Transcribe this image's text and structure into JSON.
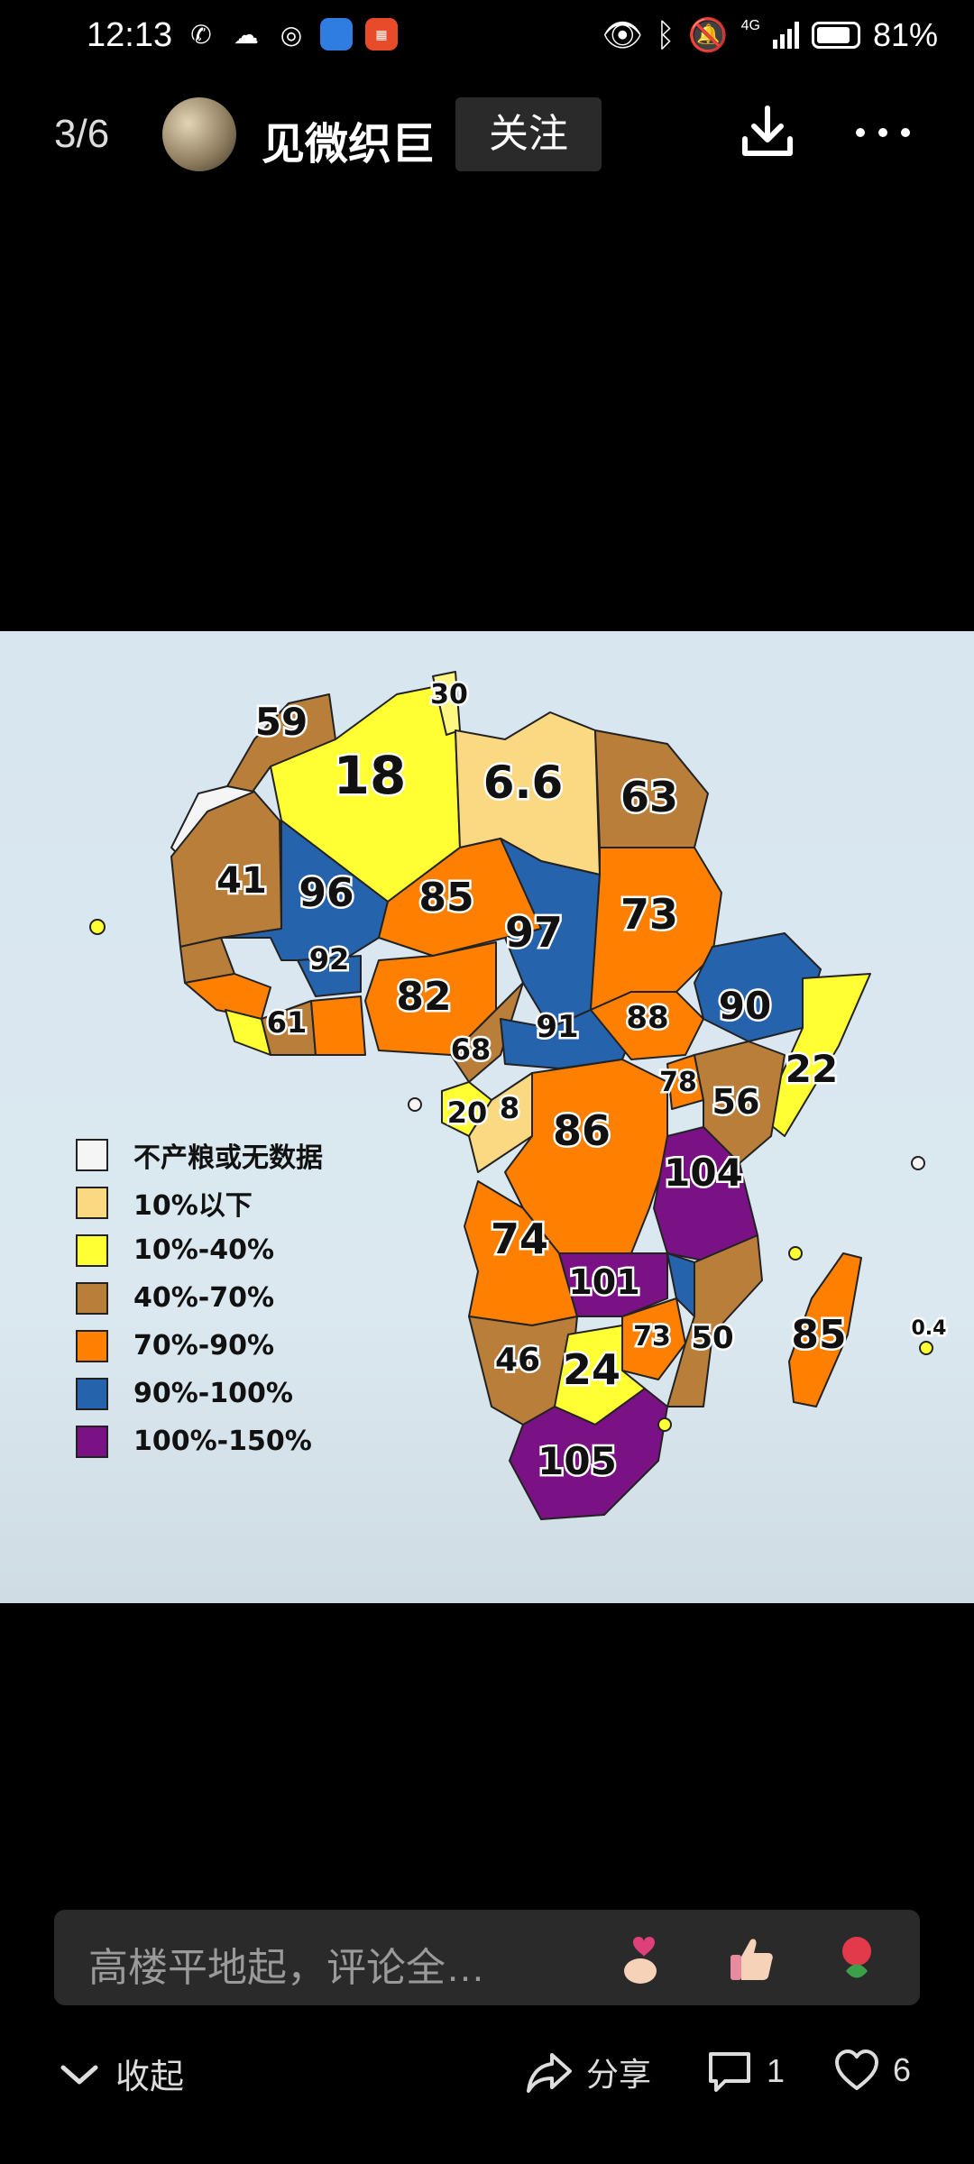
{
  "status": {
    "time": "12:13",
    "network": "4G",
    "battery": "81%",
    "icons": [
      "missed-call-icon",
      "wechat-icon",
      "browser-icon",
      "app-icon",
      "app-icon",
      "eye-icon",
      "bluetooth-icon",
      "mute-icon",
      "signal-icon",
      "battery-icon"
    ]
  },
  "header": {
    "counter": "3/6",
    "author": "见微织巨",
    "follow_label": "关注"
  },
  "map": {
    "legend": [
      {
        "label": "不产粮或无数据",
        "color": "#f5f5f5"
      },
      {
        "label": "10%以下",
        "color": "#fbd982"
      },
      {
        "label": "10%-40%",
        "color": "#ffff33"
      },
      {
        "label": "40%-70%",
        "color": "#b97f3a"
      },
      {
        "label": "70%-90%",
        "color": "#ff8000"
      },
      {
        "label": "90%-100%",
        "color": "#2563ad"
      },
      {
        "label": "100%-150%",
        "color": "#7a1285"
      }
    ],
    "labels": [
      "30",
      "59",
      "18",
      "6.6",
      "63",
      "41",
      "96",
      "85",
      "97",
      "73",
      "92",
      "82",
      "90",
      "61",
      "68",
      "91",
      "88",
      "22",
      "78",
      "56",
      "20",
      "8",
      "86",
      "104",
      "74",
      "101",
      "73",
      "50",
      "85",
      "0.4",
      "46",
      "24",
      "105"
    ]
  },
  "comment": {
    "placeholder": "高楼平地起，评论全…"
  },
  "actions": {
    "collapse": "收起",
    "share": "分享",
    "comments": "1",
    "likes": "6"
  }
}
